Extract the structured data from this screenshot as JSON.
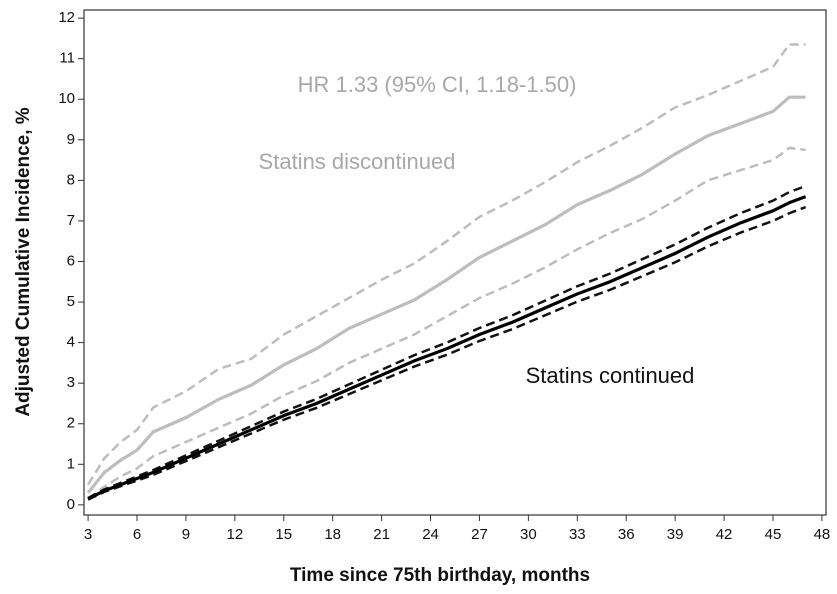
{
  "chart_data": {
    "type": "line",
    "xlabel": "Time since 75th birthday, months",
    "ylabel": "Adjusted Cumulative Incidence, %",
    "annotations": [
      "HR 1.33 (95% CI, 1.18-1.50)",
      "Statins discontinued",
      "Statins continued"
    ],
    "x": [
      3,
      4,
      5,
      6,
      7,
      9,
      11,
      13,
      15,
      17,
      19,
      21,
      23,
      25,
      27,
      29,
      31,
      33,
      35,
      37,
      39,
      41,
      43,
      45,
      46,
      47
    ],
    "series": [
      {
        "color": "#bdbdbd",
        "dash": true,
        "values": [
          0.5,
          1.15,
          1.55,
          1.85,
          2.4,
          2.8,
          3.35,
          3.6,
          4.2,
          4.65,
          5.1,
          5.55,
          5.95,
          6.5,
          7.1,
          7.5,
          7.95,
          8.45,
          8.85,
          9.3,
          9.8,
          10.1,
          10.45,
          10.8,
          11.35,
          11.35
        ]
      },
      {
        "color": "#bdbdbd",
        "dash": true,
        "values": [
          0.15,
          0.45,
          0.7,
          0.9,
          1.2,
          1.55,
          1.9,
          2.25,
          2.7,
          3.05,
          3.5,
          3.85,
          4.2,
          4.65,
          5.1,
          5.45,
          5.85,
          6.3,
          6.7,
          7.05,
          7.5,
          8.0,
          8.25,
          8.5,
          8.8,
          8.75
        ]
      },
      {
        "color": "#bdbdbd",
        "dash": false,
        "values": [
          0.3,
          0.8,
          1.1,
          1.35,
          1.8,
          2.15,
          2.6,
          2.95,
          3.45,
          3.85,
          4.35,
          4.7,
          5.05,
          5.55,
          6.1,
          6.5,
          6.9,
          7.4,
          7.75,
          8.15,
          8.65,
          9.1,
          9.4,
          9.7,
          10.05,
          10.05
        ]
      },
      {
        "color": "#111111",
        "dash": true,
        "values": [
          0.17,
          0.38,
          0.54,
          0.7,
          0.86,
          1.22,
          1.58,
          1.94,
          2.3,
          2.61,
          2.97,
          3.33,
          3.69,
          4.0,
          4.36,
          4.67,
          5.03,
          5.39,
          5.7,
          6.06,
          6.42,
          6.83,
          7.19,
          7.5,
          7.71,
          7.86
        ]
      },
      {
        "color": "#111111",
        "dash": true,
        "values": [
          0.13,
          0.32,
          0.46,
          0.6,
          0.74,
          1.08,
          1.42,
          1.76,
          2.1,
          2.39,
          2.73,
          3.07,
          3.41,
          3.7,
          4.04,
          4.33,
          4.67,
          5.01,
          5.3,
          5.64,
          5.98,
          6.37,
          6.71,
          7.0,
          7.19,
          7.34
        ]
      },
      {
        "color": "#000000",
        "dash": false,
        "values": [
          0.15,
          0.35,
          0.5,
          0.65,
          0.8,
          1.15,
          1.5,
          1.85,
          2.2,
          2.5,
          2.85,
          3.2,
          3.55,
          3.85,
          4.2,
          4.5,
          4.85,
          5.2,
          5.5,
          5.85,
          6.2,
          6.6,
          6.95,
          7.25,
          7.45,
          7.6
        ]
      }
    ],
    "xlim": [
      2.75,
      48.25
    ],
    "ylim": [
      -0.25,
      12.2
    ],
    "xticks": [
      3,
      6,
      9,
      12,
      15,
      18,
      21,
      24,
      27,
      30,
      33,
      36,
      39,
      42,
      45,
      48
    ],
    "yticks": [
      0,
      1,
      2,
      3,
      4,
      5,
      6,
      7,
      8,
      9,
      10,
      11,
      12
    ]
  }
}
